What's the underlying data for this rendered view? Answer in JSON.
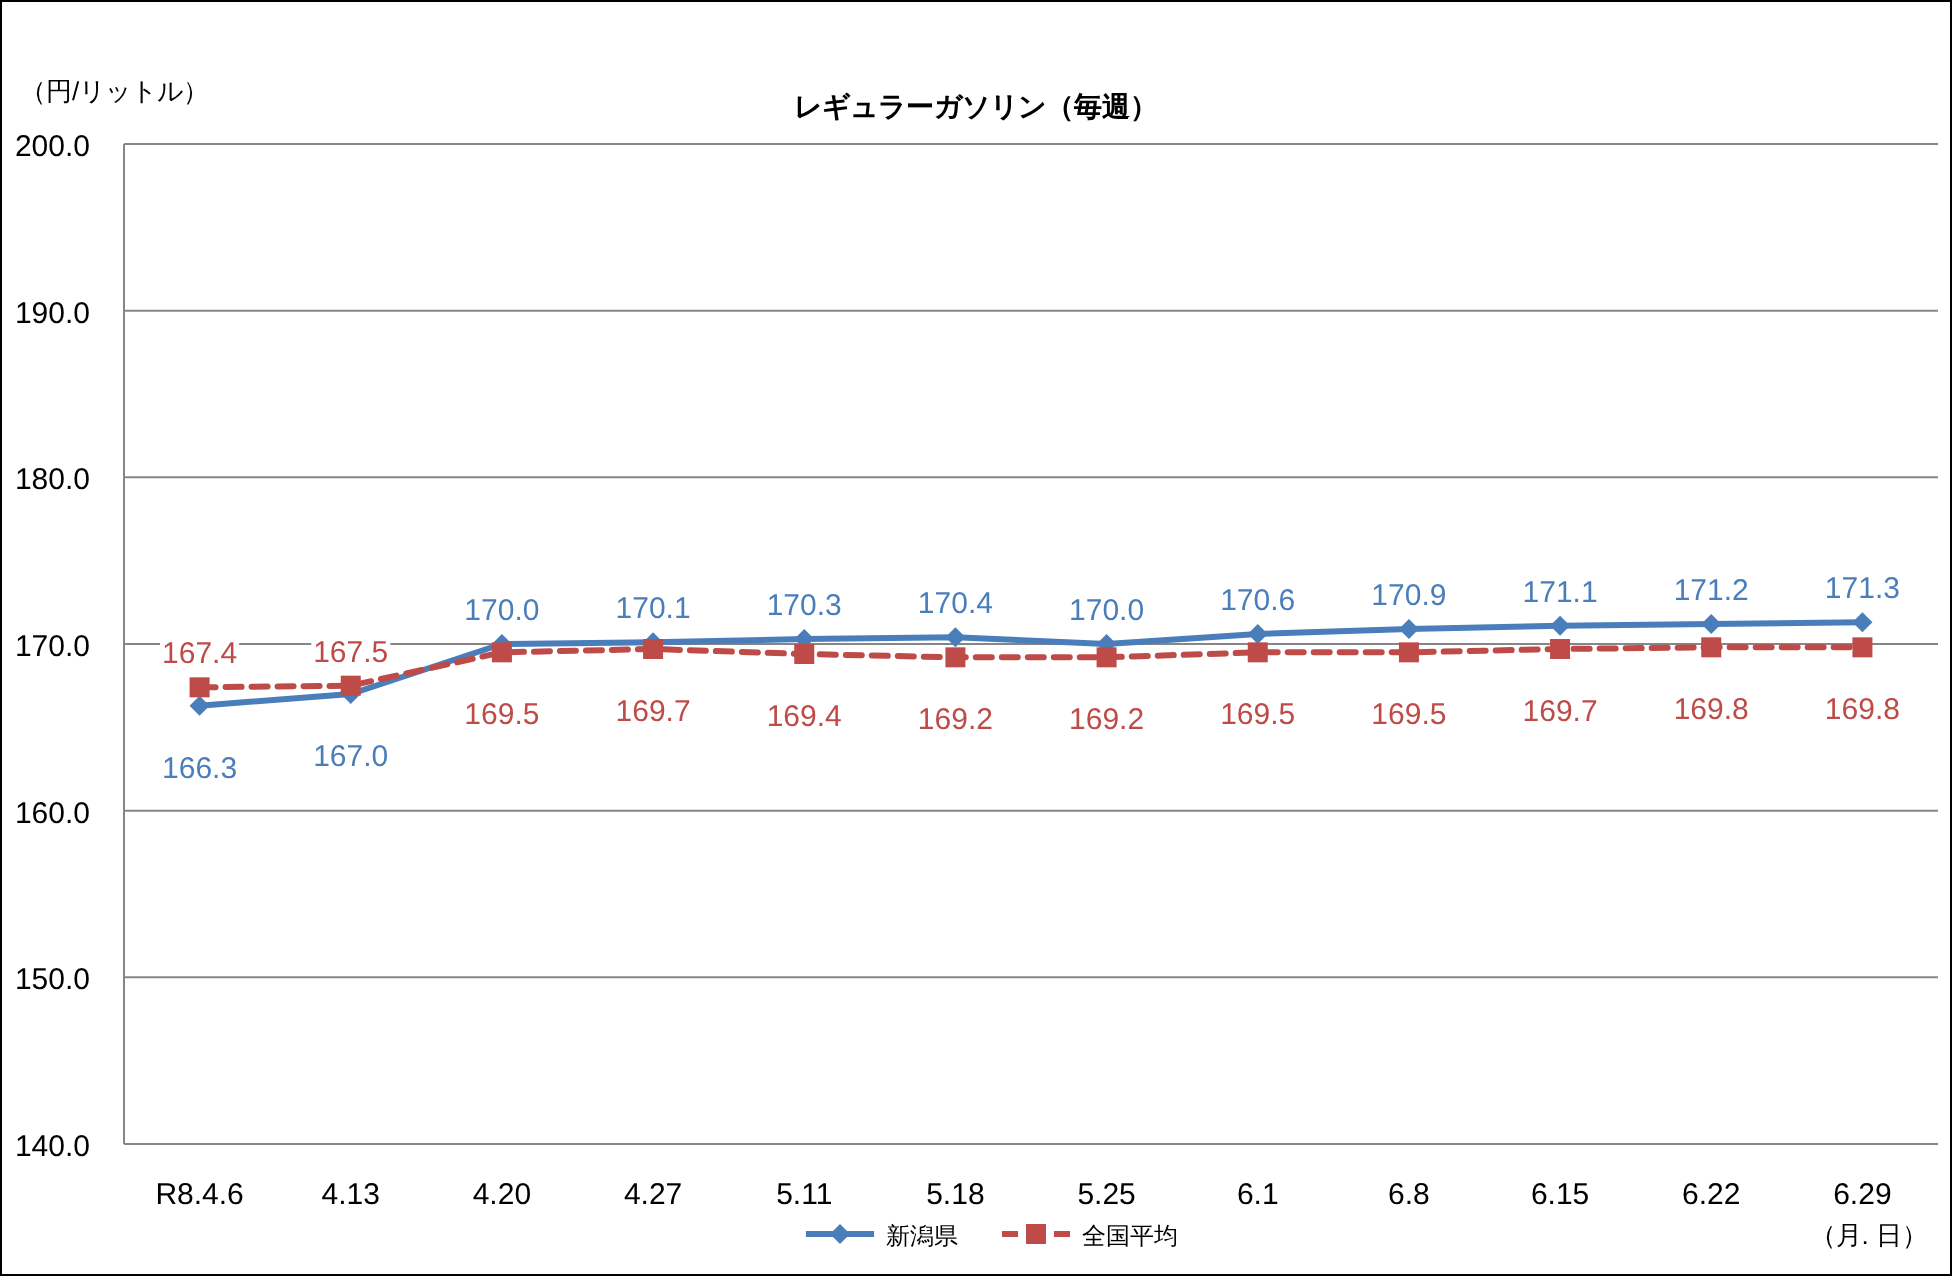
{
  "chart_data": {
    "type": "line",
    "title": "レギュラーガソリン（毎週）",
    "ylabel": "（円/リットル）",
    "xlabel": "（月. 日）",
    "categories": [
      "R8.4.6",
      "4.13",
      "4.20",
      "4.27",
      "5.11",
      "5.18",
      "5.25",
      "6.1",
      "6.8",
      "6.15",
      "6.22",
      "6.29"
    ],
    "series": [
      {
        "name": "新潟県",
        "color": "#4a7ebb",
        "marker": "diamond",
        "line_style": "solid",
        "values": [
          166.3,
          167.0,
          170.0,
          170.1,
          170.3,
          170.4,
          170.0,
          170.6,
          170.9,
          171.1,
          171.2,
          171.3
        ],
        "value_labels": [
          "166.3",
          "167.0",
          "170.0",
          "170.1",
          "170.3",
          "170.4",
          "170.0",
          "170.6",
          "170.9",
          "171.1",
          "171.2",
          "171.3"
        ]
      },
      {
        "name": "全国平均",
        "color": "#be4b48",
        "marker": "square",
        "line_style": "dashed",
        "values": [
          167.4,
          167.5,
          169.5,
          169.7,
          169.4,
          169.2,
          169.2,
          169.5,
          169.5,
          169.7,
          169.8,
          169.8
        ],
        "value_labels": [
          "167.4",
          "167.5",
          "169.5",
          "169.7",
          "169.4",
          "169.2",
          "169.2",
          "169.5",
          "169.5",
          "169.7",
          "169.8",
          "169.8"
        ]
      }
    ],
    "ylim": [
      140,
      200
    ],
    "yticks": [
      {
        "value": 140,
        "label": "140.0"
      },
      {
        "value": 150,
        "label": "150.0"
      },
      {
        "value": 160,
        "label": "160.0"
      },
      {
        "value": 170,
        "label": "170.0"
      },
      {
        "value": 180,
        "label": "180.0"
      },
      {
        "value": 190,
        "label": "190.0"
      },
      {
        "value": 200,
        "label": "200.0"
      }
    ],
    "grid": "y",
    "legend": "bottom"
  }
}
